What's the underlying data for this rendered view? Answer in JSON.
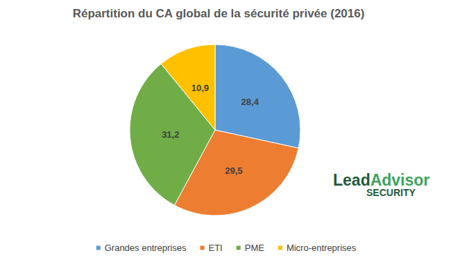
{
  "chart_data": {
    "type": "pie",
    "title": "Répartition du CA global de la sécurité privée (2016)",
    "categories": [
      "Grandes entreprises",
      "ETI",
      "PME",
      "Micro-entreprises"
    ],
    "values": [
      28.4,
      29.5,
      31.2,
      10.9
    ],
    "value_labels": [
      "28,4",
      "29,5",
      "31,2",
      "10,9"
    ],
    "colors": [
      "#5b9bd5",
      "#ed7d31",
      "#70ad47",
      "#ffc000"
    ],
    "data_labels": true,
    "legend": "bottom",
    "annotations": [
      "Lead",
      "Advisor",
      "SECURITY"
    ]
  }
}
